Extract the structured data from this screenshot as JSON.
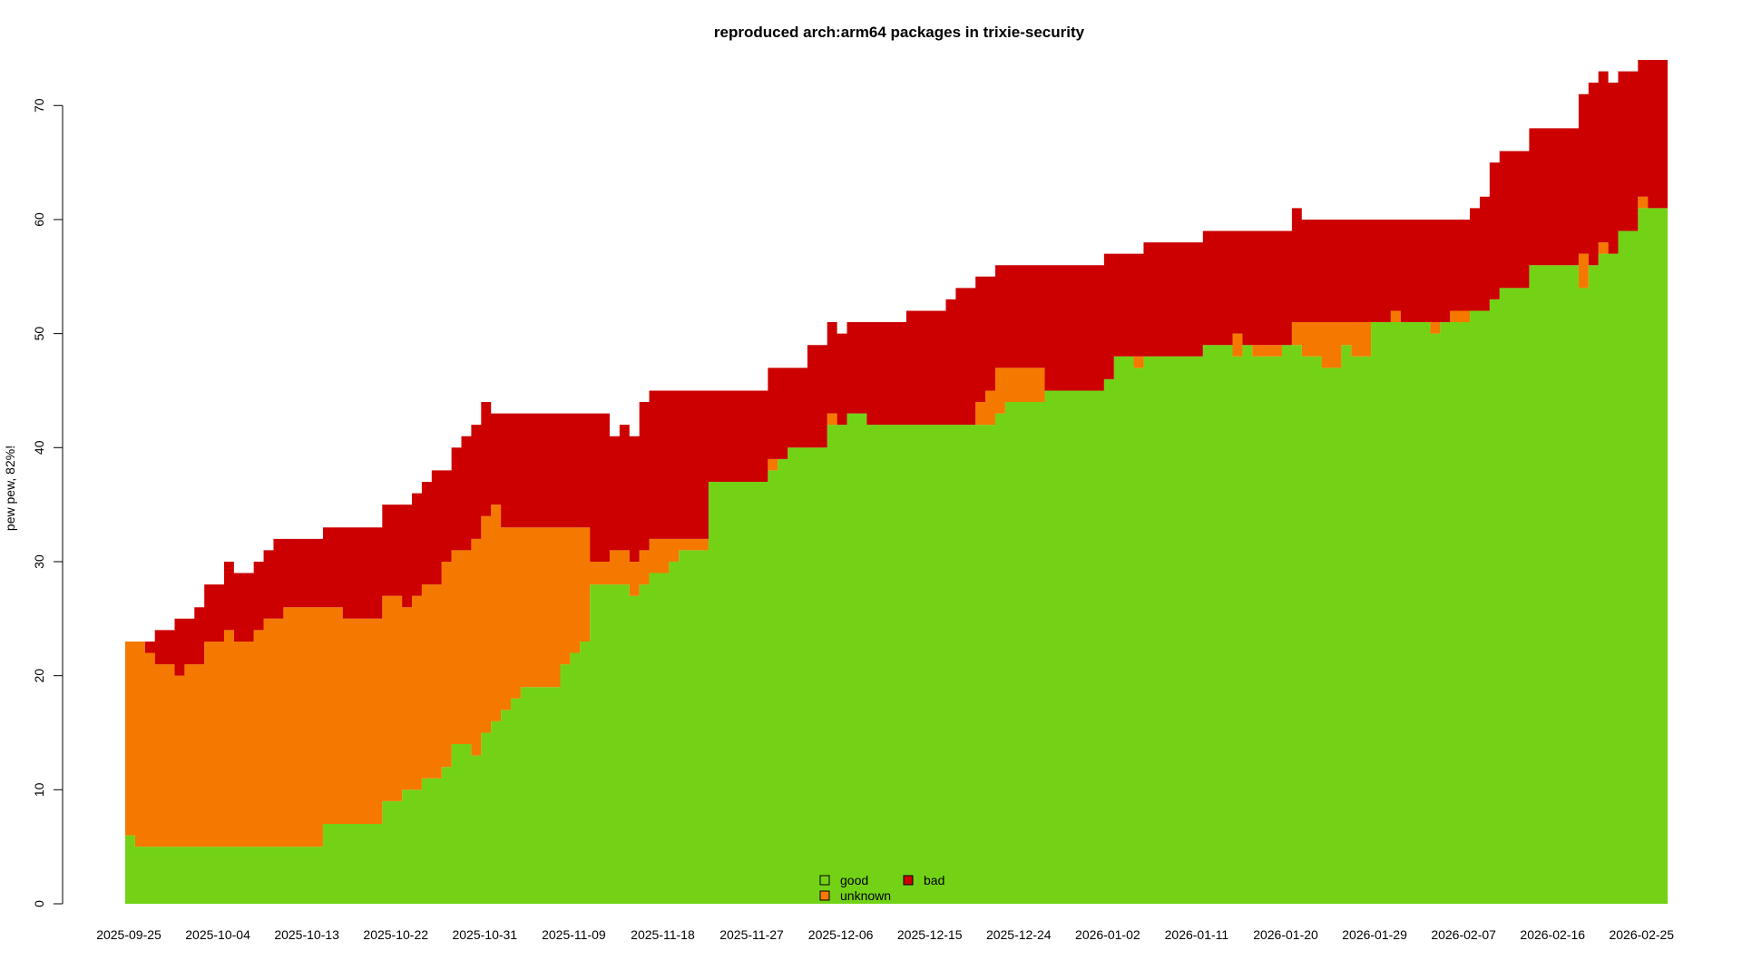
{
  "chart_data": {
    "type": "area",
    "stacked": true,
    "title": "reproduced arch:arm64 packages in trixie-security",
    "ylabel": "pew pew, 82%!",
    "xlabel": "",
    "x_start": "2025-09-25",
    "x_end": "2026-02-28",
    "ylim": [
      0,
      74
    ],
    "yticks": [
      0,
      10,
      20,
      30,
      40,
      50,
      60,
      70
    ],
    "xticks": [
      "2025-09-25",
      "2025-10-04",
      "2025-10-13",
      "2025-10-22",
      "2025-10-31",
      "2025-11-09",
      "2025-11-18",
      "2025-11-27",
      "2025-12-06",
      "2025-12-15",
      "2025-12-24",
      "2026-01-02",
      "2026-01-11",
      "2026-01-20",
      "2026-01-29",
      "2026-02-07",
      "2026-02-16",
      "2026-02-25"
    ],
    "grid": false,
    "legend_position": "bottom-center",
    "series": [
      {
        "name": "good",
        "color": "#73d216",
        "steps": [
          [
            "2025-09-25",
            6
          ],
          [
            "2025-09-26",
            5
          ],
          [
            "2025-10-15",
            7
          ],
          [
            "2025-10-21",
            9
          ],
          [
            "2025-10-23",
            10
          ],
          [
            "2025-10-25",
            11
          ],
          [
            "2025-10-27",
            12
          ],
          [
            "2025-10-28",
            14
          ],
          [
            "2025-10-30",
            13
          ],
          [
            "2025-10-31",
            15
          ],
          [
            "2025-11-01",
            16
          ],
          [
            "2025-11-02",
            17
          ],
          [
            "2025-11-03",
            18
          ],
          [
            "2025-11-04",
            19
          ],
          [
            "2025-11-08",
            21
          ],
          [
            "2025-11-09",
            22
          ],
          [
            "2025-11-10",
            23
          ],
          [
            "2025-11-11",
            28
          ],
          [
            "2025-11-15",
            27
          ],
          [
            "2025-11-16",
            28
          ],
          [
            "2025-11-17",
            29
          ],
          [
            "2025-11-19",
            30
          ],
          [
            "2025-11-20",
            31
          ],
          [
            "2025-11-23",
            37
          ],
          [
            "2025-11-29",
            38
          ],
          [
            "2025-11-30",
            39
          ],
          [
            "2025-12-01",
            40
          ],
          [
            "2025-12-05",
            42
          ],
          [
            "2025-12-07",
            43
          ],
          [
            "2025-12-09",
            42
          ],
          [
            "2025-12-22",
            43
          ],
          [
            "2025-12-23",
            44
          ],
          [
            "2025-12-27",
            45
          ],
          [
            "2026-01-02",
            46
          ],
          [
            "2026-01-03",
            48
          ],
          [
            "2026-01-05",
            47
          ],
          [
            "2026-01-06",
            48
          ],
          [
            "2026-01-12",
            49
          ],
          [
            "2026-01-15",
            48
          ],
          [
            "2026-01-16",
            49
          ],
          [
            "2026-01-17",
            48
          ],
          [
            "2026-01-20",
            49
          ],
          [
            "2026-01-22",
            48
          ],
          [
            "2026-01-24",
            47
          ],
          [
            "2026-01-26",
            49
          ],
          [
            "2026-01-27",
            48
          ],
          [
            "2026-01-29",
            51
          ],
          [
            "2026-02-04",
            50
          ],
          [
            "2026-02-05",
            51
          ],
          [
            "2026-02-08",
            52
          ],
          [
            "2026-02-10",
            53
          ],
          [
            "2026-02-11",
            54
          ],
          [
            "2026-02-14",
            56
          ],
          [
            "2026-02-19",
            54
          ],
          [
            "2026-02-20",
            56
          ],
          [
            "2026-02-21",
            57
          ],
          [
            "2026-02-23",
            59
          ],
          [
            "2026-02-25",
            61
          ]
        ]
      },
      {
        "name": "unknown",
        "color": "#f57900",
        "steps": [
          [
            "2025-09-25",
            17
          ],
          [
            "2025-09-26",
            18
          ],
          [
            "2025-09-27",
            17
          ],
          [
            "2025-09-28",
            16
          ],
          [
            "2025-09-30",
            15
          ],
          [
            "2025-10-01",
            16
          ],
          [
            "2025-10-03",
            18
          ],
          [
            "2025-10-05",
            19
          ],
          [
            "2025-10-06",
            18
          ],
          [
            "2025-10-08",
            19
          ],
          [
            "2025-10-09",
            20
          ],
          [
            "2025-10-11",
            21
          ],
          [
            "2025-10-15",
            19
          ],
          [
            "2025-10-17",
            18
          ],
          [
            "2025-10-21",
            18
          ],
          [
            "2025-10-23",
            16
          ],
          [
            "2025-10-24",
            17
          ],
          [
            "2025-10-25",
            17
          ],
          [
            "2025-10-27",
            18
          ],
          [
            "2025-10-28",
            17
          ],
          [
            "2025-10-30",
            19
          ],
          [
            "2025-10-31",
            19
          ],
          [
            "2025-11-01",
            19
          ],
          [
            "2025-11-02",
            16
          ],
          [
            "2025-11-03",
            15
          ],
          [
            "2025-11-04",
            14
          ],
          [
            "2025-11-08",
            12
          ],
          [
            "2025-11-09",
            11
          ],
          [
            "2025-11-10",
            10
          ],
          [
            "2025-11-11",
            2
          ],
          [
            "2025-11-13",
            3
          ],
          [
            "2025-11-16",
            3
          ],
          [
            "2025-11-17",
            3
          ],
          [
            "2025-11-19",
            2
          ],
          [
            "2025-11-20",
            1
          ],
          [
            "2025-11-23",
            0
          ],
          [
            "2025-11-29",
            1
          ],
          [
            "2025-11-30",
            0
          ],
          [
            "2025-12-05",
            1
          ],
          [
            "2025-12-06",
            0
          ],
          [
            "2025-12-20",
            2
          ],
          [
            "2025-12-21",
            3
          ],
          [
            "2025-12-22",
            4
          ],
          [
            "2025-12-23",
            3
          ],
          [
            "2025-12-27",
            0
          ],
          [
            "2026-01-05",
            1
          ],
          [
            "2026-01-06",
            0
          ],
          [
            "2026-01-12",
            0
          ],
          [
            "2026-01-15",
            2
          ],
          [
            "2026-01-16",
            0
          ],
          [
            "2026-01-17",
            1
          ],
          [
            "2026-01-20",
            0
          ],
          [
            "2026-01-21",
            2
          ],
          [
            "2026-01-22",
            3
          ],
          [
            "2026-01-24",
            4
          ],
          [
            "2026-01-26",
            2
          ],
          [
            "2026-01-27",
            3
          ],
          [
            "2026-01-29",
            0
          ],
          [
            "2026-01-31",
            1
          ],
          [
            "2026-02-01",
            0
          ],
          [
            "2026-02-04",
            1
          ],
          [
            "2026-02-05",
            0
          ],
          [
            "2026-02-06",
            1
          ],
          [
            "2026-02-08",
            0
          ],
          [
            "2026-02-18",
            0
          ],
          [
            "2026-02-19",
            3
          ],
          [
            "2026-02-20",
            0
          ],
          [
            "2026-02-21",
            1
          ],
          [
            "2026-02-22",
            0
          ],
          [
            "2026-02-25",
            1
          ],
          [
            "2026-02-26",
            0
          ]
        ]
      },
      {
        "name": "bad",
        "color": "#cc0000",
        "steps": [
          [
            "2025-09-25",
            0
          ],
          [
            "2025-09-27",
            1
          ],
          [
            "2025-09-28",
            3
          ],
          [
            "2025-09-30",
            5
          ],
          [
            "2025-10-01",
            4
          ],
          [
            "2025-10-02",
            5
          ],
          [
            "2025-10-03",
            5
          ],
          [
            "2025-10-05",
            6
          ],
          [
            "2025-10-06",
            6
          ],
          [
            "2025-10-08",
            6
          ],
          [
            "2025-10-09",
            6
          ],
          [
            "2025-10-10",
            7
          ],
          [
            "2025-10-11",
            6
          ],
          [
            "2025-10-15",
            7
          ],
          [
            "2025-10-17",
            8
          ],
          [
            "2025-10-21",
            8
          ],
          [
            "2025-10-23",
            9
          ],
          [
            "2025-10-24",
            9
          ],
          [
            "2025-10-25",
            9
          ],
          [
            "2025-10-26",
            10
          ],
          [
            "2025-10-27",
            8
          ],
          [
            "2025-10-28",
            9
          ],
          [
            "2025-10-29",
            10
          ],
          [
            "2025-10-30",
            10
          ],
          [
            "2025-10-31",
            10
          ],
          [
            "2025-11-01",
            8
          ],
          [
            "2025-11-02",
            10
          ],
          [
            "2025-11-03",
            10
          ],
          [
            "2025-11-04",
            10
          ],
          [
            "2025-11-08",
            10
          ],
          [
            "2025-11-09",
            10
          ],
          [
            "2025-11-10",
            10
          ],
          [
            "2025-11-11",
            13
          ],
          [
            "2025-11-13",
            10
          ],
          [
            "2025-11-14",
            11
          ],
          [
            "2025-11-16",
            13
          ],
          [
            "2025-11-17",
            13
          ],
          [
            "2025-11-19",
            13
          ],
          [
            "2025-11-20",
            13
          ],
          [
            "2025-11-23",
            8
          ],
          [
            "2025-11-29",
            8
          ],
          [
            "2025-11-30",
            8
          ],
          [
            "2025-12-01",
            7
          ],
          [
            "2025-12-03",
            9
          ],
          [
            "2025-12-04",
            9
          ],
          [
            "2025-12-05",
            8
          ],
          [
            "2025-12-06",
            8
          ],
          [
            "2025-12-07",
            8
          ],
          [
            "2025-12-09",
            9
          ],
          [
            "2025-12-13",
            10
          ],
          [
            "2025-12-17",
            11
          ],
          [
            "2025-12-18",
            12
          ],
          [
            "2025-12-20",
            11
          ],
          [
            "2025-12-21",
            10
          ],
          [
            "2025-12-22",
            9
          ],
          [
            "2025-12-23",
            9
          ],
          [
            "2025-12-27",
            11
          ],
          [
            "2026-01-02",
            11
          ],
          [
            "2026-01-03",
            9
          ],
          [
            "2026-01-05",
            9
          ],
          [
            "2026-01-06",
            10
          ],
          [
            "2026-01-12",
            10
          ],
          [
            "2026-01-15",
            9
          ],
          [
            "2026-01-16",
            10
          ],
          [
            "2026-01-17",
            10
          ],
          [
            "2026-01-20",
            10
          ],
          [
            "2026-01-21",
            10
          ],
          [
            "2026-01-22",
            9
          ],
          [
            "2026-01-24",
            9
          ],
          [
            "2026-01-26",
            9
          ],
          [
            "2026-01-27",
            9
          ],
          [
            "2026-01-29",
            9
          ],
          [
            "2026-01-31",
            8
          ],
          [
            "2026-02-01",
            9
          ],
          [
            "2026-02-04",
            9
          ],
          [
            "2026-02-05",
            9
          ],
          [
            "2026-02-06",
            8
          ],
          [
            "2026-02-08",
            9
          ],
          [
            "2026-02-09",
            10
          ],
          [
            "2026-02-10",
            12
          ],
          [
            "2026-02-11",
            12
          ],
          [
            "2026-02-14",
            12
          ],
          [
            "2026-02-18",
            12
          ],
          [
            "2026-02-19",
            14
          ],
          [
            "2026-02-20",
            16
          ],
          [
            "2026-02-21",
            15
          ],
          [
            "2026-02-22",
            15
          ],
          [
            "2026-02-23",
            14
          ],
          [
            "2026-02-25",
            12
          ],
          [
            "2026-02-26",
            13
          ]
        ]
      }
    ]
  }
}
